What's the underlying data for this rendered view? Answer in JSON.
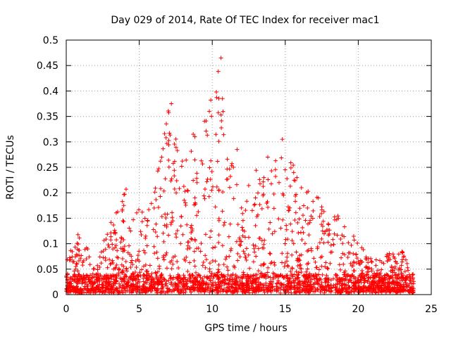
{
  "chart_data": {
    "type": "scatter",
    "title": "Day 029 of 2014, Rate Of TEC Index for receiver mac1",
    "xlabel": "GPS time / hours",
    "ylabel": "ROTI / TECUs",
    "xlim": [
      0,
      25
    ],
    "ylim": [
      0,
      0.5
    ],
    "xticks": [
      0,
      5,
      10,
      15,
      20,
      25
    ],
    "xtick_labels": [
      "0",
      "5",
      "10",
      "15",
      "20",
      "25"
    ],
    "yticks": [
      0,
      0.05,
      0.1,
      0.15,
      0.2,
      0.25,
      0.3,
      0.35,
      0.4,
      0.45,
      0.5
    ],
    "ytick_labels": [
      "0",
      "0.05",
      "0.1",
      "0.15",
      "0.2",
      "0.25",
      "0.3",
      "0.35",
      "0.4",
      "0.45",
      "0.5"
    ],
    "grid": true,
    "marker": "+",
    "color": "#ff0000",
    "series": [
      {
        "name": "ROTI",
        "envelope": {
          "x": [
            0,
            1,
            2,
            3,
            4,
            5,
            6,
            7,
            8,
            9,
            10,
            10.5,
            11,
            12,
            13,
            14,
            15,
            16,
            17,
            18,
            19,
            20,
            21,
            22,
            23,
            23.8
          ],
          "y": [
            0.07,
            0.13,
            0.05,
            0.15,
            0.2,
            0.18,
            0.2,
            0.37,
            0.27,
            0.35,
            0.38,
            0.46,
            0.32,
            0.2,
            0.25,
            0.25,
            0.3,
            0.22,
            0.2,
            0.17,
            0.15,
            0.1,
            0.07,
            0.08,
            0.09,
            0.03
          ]
        },
        "highlights": [
          {
            "x": 10.6,
            "y": 0.465
          },
          {
            "x": 7.2,
            "y": 0.375
          },
          {
            "x": 9.9,
            "y": 0.382
          },
          {
            "x": 10.3,
            "y": 0.387
          },
          {
            "x": 10.7,
            "y": 0.385
          },
          {
            "x": 9.8,
            "y": 0.36
          },
          {
            "x": 14.8,
            "y": 0.305
          },
          {
            "x": 4.1,
            "y": 0.207
          },
          {
            "x": 15.8,
            "y": 0.23
          },
          {
            "x": 13.8,
            "y": 0.27
          },
          {
            "x": 11.7,
            "y": 0.285
          }
        ]
      }
    ]
  }
}
